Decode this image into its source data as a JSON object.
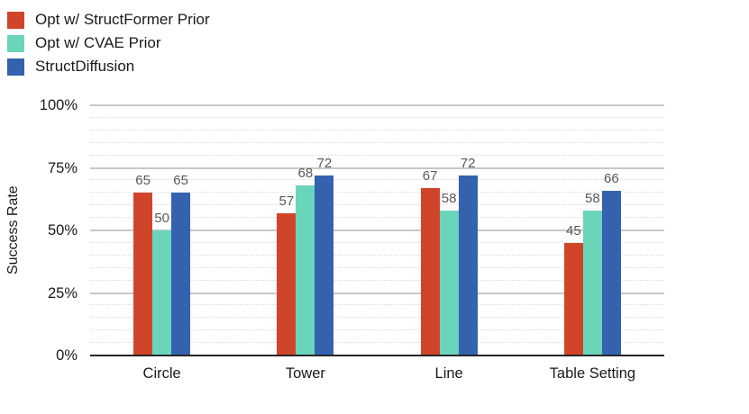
{
  "chart_data": {
    "type": "bar",
    "title": "",
    "categories": [
      "Circle",
      "Tower",
      "Line",
      "Table Setting"
    ],
    "series": [
      {
        "name": "Opt w/ StructFormer Prior",
        "color": "#d0452a",
        "values": [
          65,
          57,
          67,
          45
        ]
      },
      {
        "name": "Opt w/ CVAE Prior",
        "color": "#6bd5bc",
        "values": [
          50,
          68,
          58,
          58
        ]
      },
      {
        "name": "StructDiffusion",
        "color": "#3562ae",
        "values": [
          65,
          72,
          72,
          66
        ]
      }
    ],
    "xlabel": "",
    "ylabel": "Success Rate",
    "ylim": [
      0,
      100
    ],
    "ytick_values": [
      0,
      25,
      50,
      75,
      100
    ],
    "ytick_labels": [
      "0%",
      "25%",
      "50%",
      "75%",
      "100%"
    ],
    "minor_grid_step": 5,
    "grid": true,
    "value_labels_shown": true,
    "legend_position": "top-left"
  },
  "colors": {
    "background": "#ffffff",
    "major_gridline": "#c8c8c8",
    "minor_gridline": "#dadada",
    "axis_baseline": "#262626",
    "value_label_text": "#595959",
    "axis_text": "#1a1a1a"
  }
}
